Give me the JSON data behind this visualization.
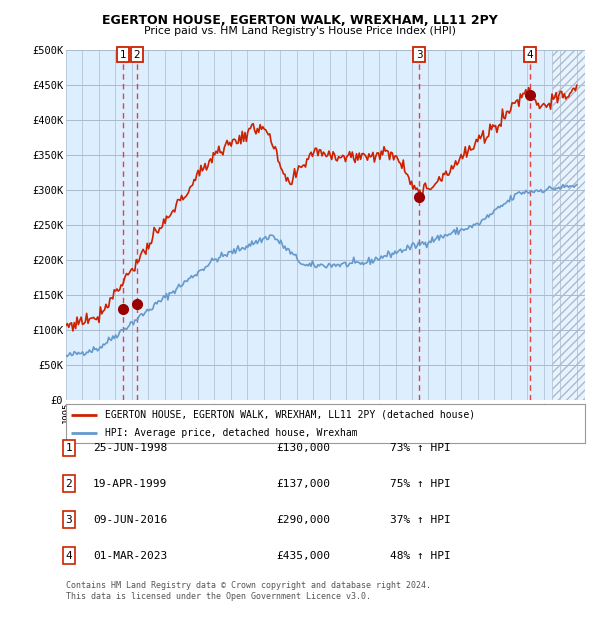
{
  "title1": "EGERTON HOUSE, EGERTON WALK, WREXHAM, LL11 2PY",
  "title2": "Price paid vs. HM Land Registry's House Price Index (HPI)",
  "legend_line1": "EGERTON HOUSE, EGERTON WALK, WREXHAM, LL11 2PY (detached house)",
  "legend_line2": "HPI: Average price, detached house, Wrexham",
  "hpi_color": "#6699cc",
  "price_color": "#cc2200",
  "dot_color": "#990000",
  "dashed_color": "#dd4444",
  "bg_color": "#ddeeff",
  "grid_color": "#aabbcc",
  "xmin": 1995.0,
  "xmax": 2026.5,
  "ymin": 0,
  "ymax": 500000,
  "yticks": [
    0,
    50000,
    100000,
    150000,
    200000,
    250000,
    300000,
    350000,
    400000,
    450000,
    500000
  ],
  "ytick_labels": [
    "£0",
    "£50K",
    "£100K",
    "£150K",
    "£200K",
    "£250K",
    "£300K",
    "£350K",
    "£400K",
    "£450K",
    "£500K"
  ],
  "transactions": [
    {
      "num": 1,
      "date": "25-JUN-1998",
      "price": 130000,
      "year": 1998.48,
      "pct": "73%",
      "dir": "↑"
    },
    {
      "num": 2,
      "date": "19-APR-1999",
      "price": 137000,
      "year": 1999.29,
      "pct": "75%",
      "dir": "↑"
    },
    {
      "num": 3,
      "date": "09-JUN-2016",
      "price": 290000,
      "year": 2016.44,
      "pct": "37%",
      "dir": "↑"
    },
    {
      "num": 4,
      "date": "01-MAR-2023",
      "price": 435000,
      "year": 2023.17,
      "pct": "48%",
      "dir": "↑"
    }
  ],
  "footer1": "Contains HM Land Registry data © Crown copyright and database right 2024.",
  "footer2": "This data is licensed under the Open Government Licence v3.0."
}
